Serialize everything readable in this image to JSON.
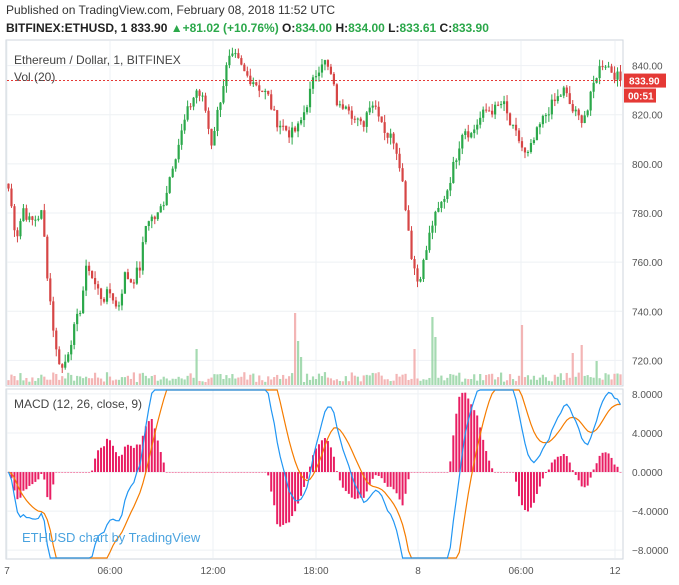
{
  "header": {
    "published": "Published on TradingView.com, February 08, 2018 11:52 UTC",
    "symbol": "BITFINEX:ETHUSD, 1",
    "last": "833.90",
    "change": "+81.02 (+10.76%)",
    "o_label": "O:",
    "o": "834.00",
    "h_label": "H:",
    "h": "834.00",
    "l_label": "L:",
    "l": "833.61",
    "c_label": "C:",
    "c": "833.90"
  },
  "price_pane": {
    "title": "Ethereum / Dollar, 1, BITFINEX",
    "vol_label": "Vol (20)",
    "last_price_tag": "833.90",
    "countdown_tag": "00:51"
  },
  "macd_pane": {
    "title": "MACD (12, 26, close, 9)"
  },
  "watermark": "ETHUSD chart by TradingView",
  "colors": {
    "up": "#2ba84a",
    "down": "#d64545",
    "macd": "#2196f3",
    "signal": "#f57c00",
    "hist_pos": "#e91e63",
    "hist_neg": "#e91e63",
    "tag": "#e53935"
  },
  "chart_data": [
    {
      "type": "candlestick",
      "title": "Ethereum / Dollar, 1, BITFINEX",
      "y_ticks": [
        720,
        740,
        760,
        780,
        800,
        820,
        840
      ],
      "ylim": [
        710,
        850
      ],
      "x_ticks": [
        "7",
        "06:00",
        "12:00",
        "18:00",
        "8",
        "06:00",
        "12"
      ],
      "last_price": 833.9,
      "anchors": [
        [
          0,
          790
        ],
        [
          8,
          770
        ],
        [
          15,
          782
        ],
        [
          22,
          776
        ],
        [
          28,
          778
        ],
        [
          34,
          780
        ],
        [
          40,
          752
        ],
        [
          48,
          724
        ],
        [
          55,
          716
        ],
        [
          63,
          728
        ],
        [
          72,
          740
        ],
        [
          80,
          760
        ],
        [
          86,
          752
        ],
        [
          95,
          745
        ],
        [
          104,
          748
        ],
        [
          110,
          740
        ],
        [
          118,
          755
        ],
        [
          125,
          752
        ],
        [
          133,
          758
        ],
        [
          140,
          778
        ],
        [
          150,
          778
        ],
        [
          158,
          786
        ],
        [
          166,
          800
        ],
        [
          172,
          808
        ],
        [
          180,
          820
        ],
        [
          190,
          830
        ],
        [
          198,
          825
        ],
        [
          205,
          808
        ],
        [
          212,
          822
        ],
        [
          222,
          842
        ],
        [
          230,
          843
        ],
        [
          240,
          836
        ],
        [
          248,
          834
        ],
        [
          256,
          830
        ],
        [
          262,
          828
        ],
        [
          270,
          818
        ],
        [
          278,
          815
        ],
        [
          286,
          812
        ],
        [
          294,
          815
        ],
        [
          302,
          825
        ],
        [
          310,
          836
        ],
        [
          318,
          843
        ],
        [
          326,
          836
        ],
        [
          334,
          822
        ],
        [
          342,
          826
        ],
        [
          350,
          818
        ],
        [
          358,
          815
        ],
        [
          366,
          826
        ],
        [
          374,
          822
        ],
        [
          382,
          812
        ],
        [
          390,
          810
        ],
        [
          396,
          800
        ],
        [
          402,
          782
        ],
        [
          408,
          762
        ],
        [
          414,
          752
        ],
        [
          420,
          760
        ],
        [
          428,
          775
        ],
        [
          436,
          782
        ],
        [
          444,
          790
        ],
        [
          452,
          802
        ],
        [
          460,
          815
        ],
        [
          468,
          812
        ],
        [
          476,
          818
        ],
        [
          484,
          822
        ],
        [
          492,
          822
        ],
        [
          500,
          825
        ],
        [
          508,
          815
        ],
        [
          516,
          810
        ],
        [
          524,
          802
        ],
        [
          530,
          808
        ],
        [
          538,
          816
        ],
        [
          546,
          822
        ],
        [
          554,
          826
        ],
        [
          562,
          830
        ],
        [
          570,
          822
        ],
        [
          578,
          818
        ],
        [
          586,
          822
        ],
        [
          594,
          836
        ],
        [
          602,
          842
        ],
        [
          610,
          838
        ],
        [
          619,
          833.9
        ]
      ],
      "volume_spikes": [
        [
          290,
          0.9
        ],
        [
          293,
          0.55
        ],
        [
          430,
          0.85
        ],
        [
          433,
          0.6
        ],
        [
          520,
          0.75
        ],
        [
          412,
          0.45
        ],
        [
          570,
          0.4
        ],
        [
          580,
          0.5
        ],
        [
          190,
          0.45
        ],
        [
          296,
          0.35
        ],
        [
          594,
          0.3
        ]
      ]
    },
    {
      "type": "macd",
      "title": "MACD (12, 26, close, 9)",
      "y_ticks": [
        -8,
        -4,
        0,
        4,
        8
      ],
      "ylim": [
        -8.8,
        8.4
      ],
      "series": [
        {
          "name": "MACD",
          "color": "#2196f3"
        },
        {
          "name": "Signal",
          "color": "#f57c00"
        },
        {
          "name": "Histogram",
          "color": "#e91e63"
        }
      ]
    }
  ]
}
